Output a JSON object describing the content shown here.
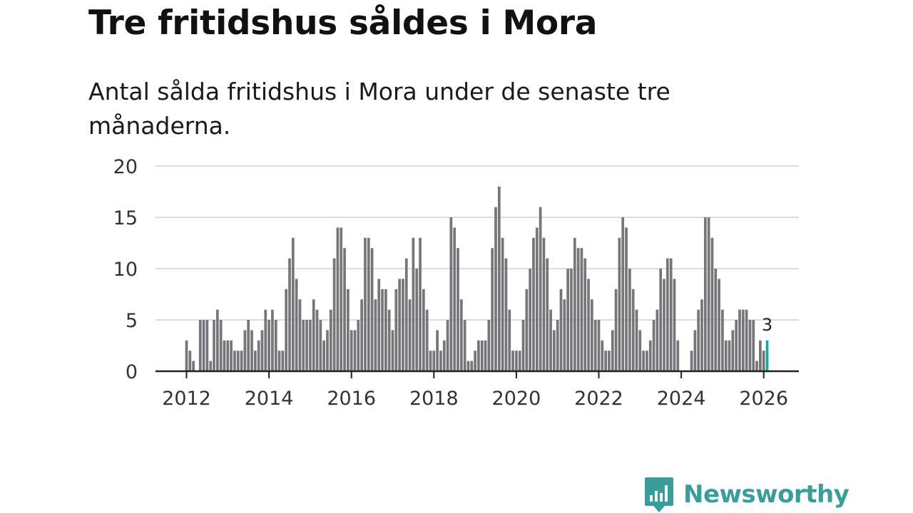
{
  "title": "Tre fritidshus såldes i Mora",
  "subtitle": "Antal sålda fritidshus i Mora under de senaste tre månaderna.",
  "brand": {
    "name": "Newsworthy",
    "icon": "newsworthy-logo-icon"
  },
  "colors": {
    "bar": "#75757a",
    "highlight": "#1fa3a2",
    "grid": "#dddddd",
    "axis": "#222222"
  },
  "chart_data": {
    "type": "bar",
    "title": "Tre fritidshus såldes i Mora",
    "xlabel": "",
    "ylabel": "",
    "ylim": [
      0,
      20
    ],
    "yticks": [
      0,
      5,
      10,
      15,
      20
    ],
    "xticks": [
      "2012",
      "2014",
      "2016",
      "2018",
      "2020",
      "2022",
      "2024",
      "2026"
    ],
    "start": "2012-01",
    "series": [
      {
        "name": "Antal sålda fritidshus",
        "values": [
          3,
          2,
          1,
          0,
          5,
          5,
          5,
          1,
          5,
          6,
          5,
          3,
          3,
          3,
          2,
          2,
          2,
          4,
          5,
          4,
          2,
          3,
          4,
          6,
          5,
          6,
          5,
          2,
          2,
          8,
          11,
          13,
          9,
          7,
          5,
          5,
          5,
          7,
          6,
          5,
          3,
          4,
          6,
          11,
          14,
          14,
          12,
          8,
          4,
          4,
          5,
          7,
          13,
          13,
          12,
          7,
          9,
          8,
          8,
          6,
          4,
          8,
          9,
          9,
          11,
          7,
          13,
          10,
          13,
          8,
          6,
          2,
          2,
          4,
          2,
          3,
          5,
          15,
          14,
          12,
          7,
          5,
          1,
          1,
          2,
          3,
          3,
          3,
          5,
          12,
          16,
          18,
          13,
          11,
          6,
          2,
          2,
          2,
          5,
          8,
          10,
          13,
          14,
          16,
          13,
          11,
          6,
          4,
          5,
          8,
          7,
          10,
          10,
          13,
          12,
          12,
          11,
          9,
          7,
          5,
          5,
          3,
          2,
          2,
          4,
          8,
          13,
          15,
          14,
          10,
          8,
          6,
          4,
          2,
          2,
          3,
          5,
          6,
          10,
          9,
          11,
          11,
          9,
          3,
          0,
          0,
          0,
          2,
          4,
          6,
          7,
          15,
          15,
          13,
          10,
          9,
          6,
          3,
          3,
          4,
          5,
          6,
          6,
          6,
          5,
          5,
          1,
          3,
          2,
          3
        ]
      }
    ],
    "annotations": [
      {
        "label": "3",
        "index": 169
      }
    ]
  }
}
